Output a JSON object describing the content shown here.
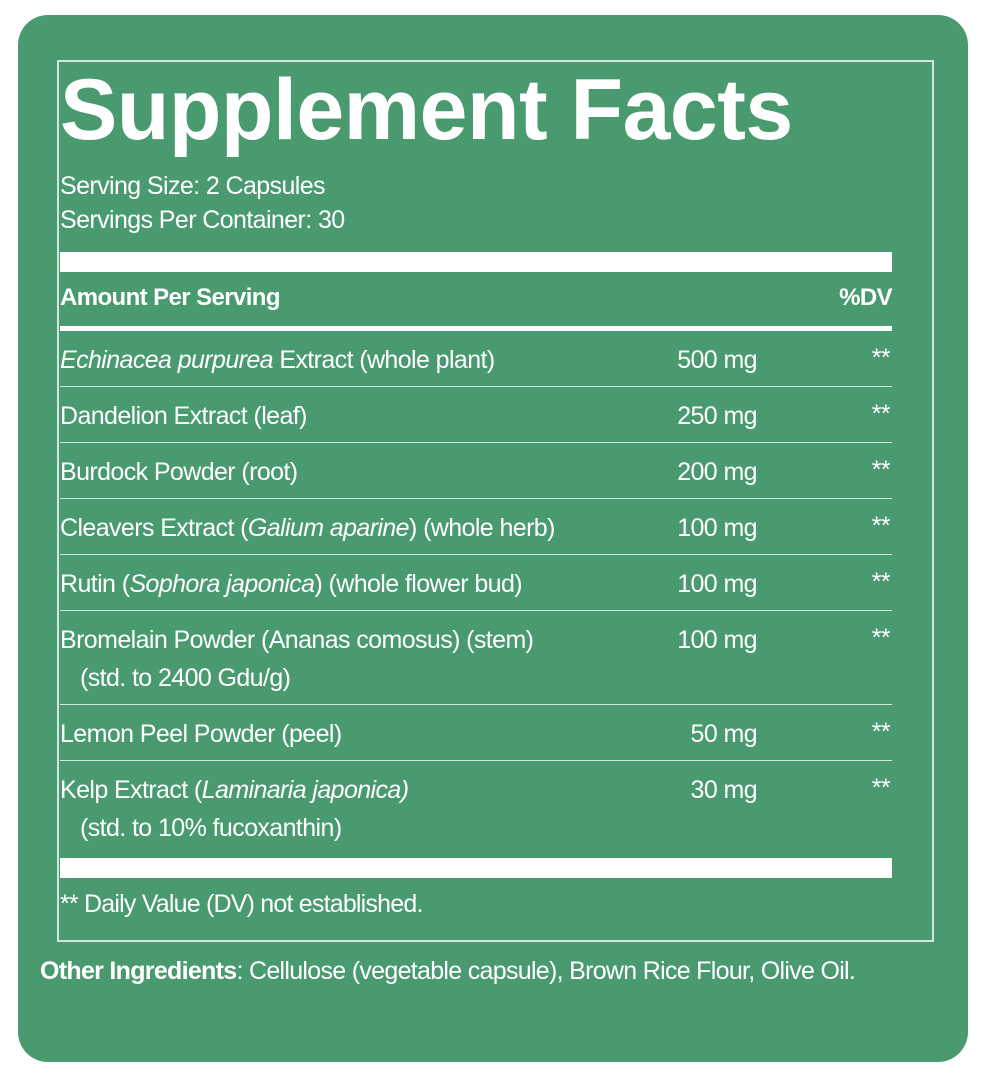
{
  "title": "Supplement Facts",
  "serving_size": "Serving Size: 2 Capsules",
  "servings_per_container": "Servings Per Container: 30",
  "header": {
    "amount_label": "Amount Per Serving",
    "dv_label": "%DV"
  },
  "rows": [
    {
      "name": [
        {
          "text": "Echinacea purpurea",
          "italic": true
        },
        {
          "text": " Extract (whole plant)",
          "italic": false
        }
      ],
      "sub": "",
      "amount": "500 mg",
      "dv": "**"
    },
    {
      "name": [
        {
          "text": "Dandelion Extract (leaf)",
          "italic": false
        }
      ],
      "sub": "",
      "amount": "250 mg",
      "dv": "**"
    },
    {
      "name": [
        {
          "text": "Burdock Powder (root)",
          "italic": false
        }
      ],
      "sub": "",
      "amount": "200 mg",
      "dv": "**"
    },
    {
      "name": [
        {
          "text": "Cleavers Extract (",
          "italic": false
        },
        {
          "text": "Galium aparine",
          "italic": true
        },
        {
          "text": ") (whole herb)",
          "italic": false
        }
      ],
      "sub": "",
      "amount": "100 mg",
      "dv": "**"
    },
    {
      "name": [
        {
          "text": "Rutin (",
          "italic": false
        },
        {
          "text": "Sophora japonica",
          "italic": true
        },
        {
          "text": ") (whole flower bud)",
          "italic": false
        }
      ],
      "sub": "",
      "amount": "100 mg",
      "dv": "**"
    },
    {
      "name": [
        {
          "text": "Bromelain Powder (Ananas comosus) (stem)",
          "italic": false
        }
      ],
      "sub": "(std. to 2400 Gdu/g)",
      "amount": "100 mg",
      "dv": "**"
    },
    {
      "name": [
        {
          "text": "Lemon Peel Powder (peel)",
          "italic": false
        }
      ],
      "sub": "",
      "amount": "50 mg",
      "dv": "**"
    },
    {
      "name": [
        {
          "text": "Kelp Extract (",
          "italic": false
        },
        {
          "text": "Laminaria japonica)",
          "italic": true
        }
      ],
      "sub": "(std. to 10% fucoxanthin)",
      "amount": "30 mg",
      "dv": "**"
    }
  ],
  "footnote": "** Daily Value (DV) not established.",
  "other_ingredients": {
    "label": "Other Ingredients",
    "text": ": Cellulose (vegetable capsule), Brown Rice Flour, Olive Oil."
  },
  "colors": {
    "background": "#4a9a70",
    "text": "#ffffff",
    "rule": "#cfe6d8"
  }
}
